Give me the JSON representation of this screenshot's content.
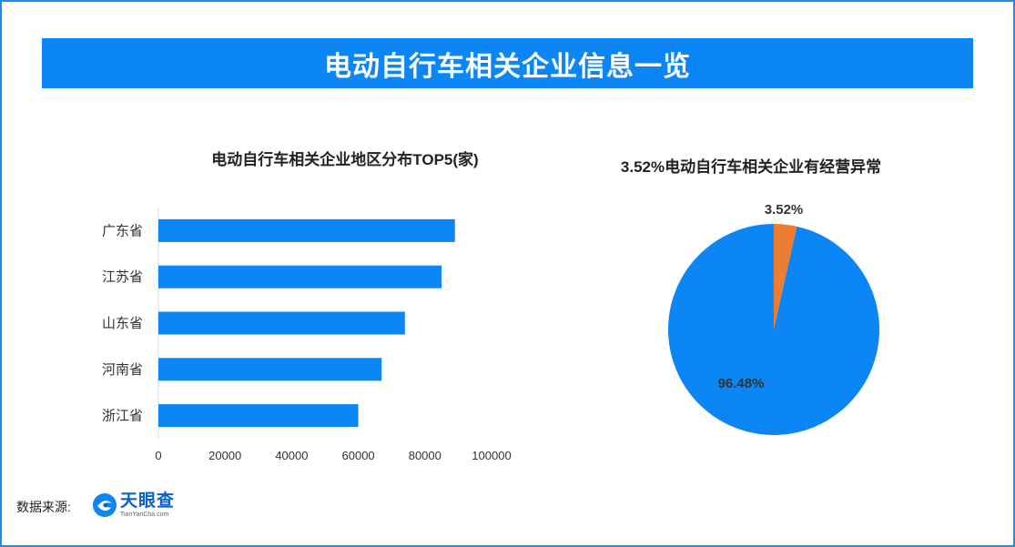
{
  "banner": {
    "title": "电动自行车相关企业信息一览"
  },
  "colors": {
    "primary": "#0b86f4",
    "accent": "#ed7d31",
    "frame": "#1c8cf2"
  },
  "chart_data": [
    {
      "type": "bar",
      "orientation": "horizontal",
      "title": "电动自行车相关企业地区分布TOP5(家)",
      "categories": [
        "广东省",
        "江苏省",
        "山东省",
        "河南省",
        "浙江省"
      ],
      "values": [
        89000,
        85000,
        74000,
        67000,
        60000
      ],
      "xlim": [
        0,
        100000
      ],
      "xticks": [
        "0",
        "20000",
        "40000",
        "60000",
        "80000",
        "100000"
      ],
      "grid": false
    },
    {
      "type": "pie",
      "title": "3.52%电动自行车相关企业有经营异常",
      "slices": [
        {
          "label": "3.52%",
          "value": 3.52,
          "color": "#ed7d31"
        },
        {
          "label": "96.48%",
          "value": 96.48,
          "color": "#0b86f4"
        }
      ]
    }
  ],
  "footer": {
    "source_label": "数据来源:",
    "logo_icon": "tianyancha-logo-icon",
    "logo_name": "天眼查",
    "logo_url": "TianYanCha.com"
  }
}
